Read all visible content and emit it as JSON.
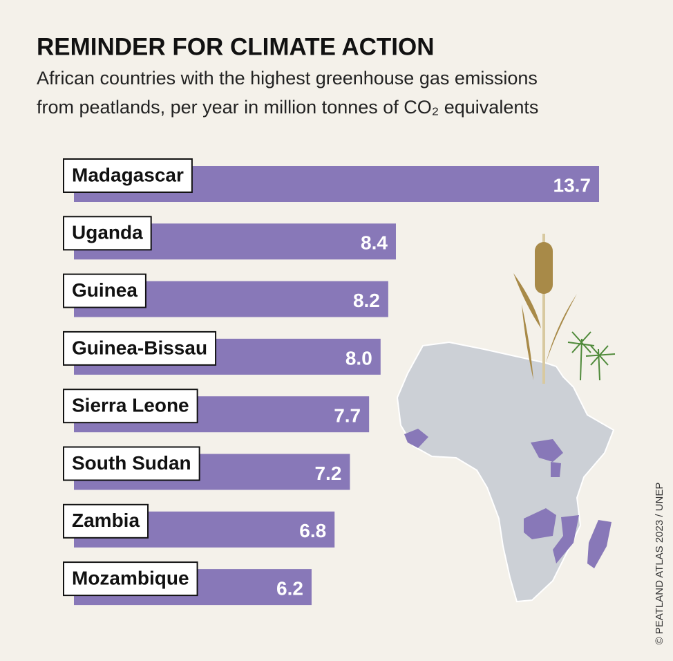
{
  "chart_data": {
    "type": "bar",
    "orientation": "horizontal",
    "title": "REMINDER FOR CLIMATE ACTION",
    "subtitle": [
      "African countries with the highest greenhouse gas emissions",
      "from peatlands, per year in million tonnes of CO₂ equivalents"
    ],
    "categories": [
      "Madagascar",
      "Uganda",
      "Guinea",
      "Guinea-Bissau",
      "Sierra Leone",
      "South Sudan",
      "Zambia",
      "Mozambique"
    ],
    "values": [
      13.7,
      8.4,
      8.2,
      8.0,
      7.7,
      7.2,
      6.8,
      6.2
    ],
    "value_labels": [
      "13.7",
      "8.4",
      "8.2",
      "8.0",
      "7.7",
      "7.2",
      "6.8",
      "6.2"
    ],
    "color": "#8878b8",
    "credit": "© PEATLAND ATLAS 2023 / UNEP"
  }
}
